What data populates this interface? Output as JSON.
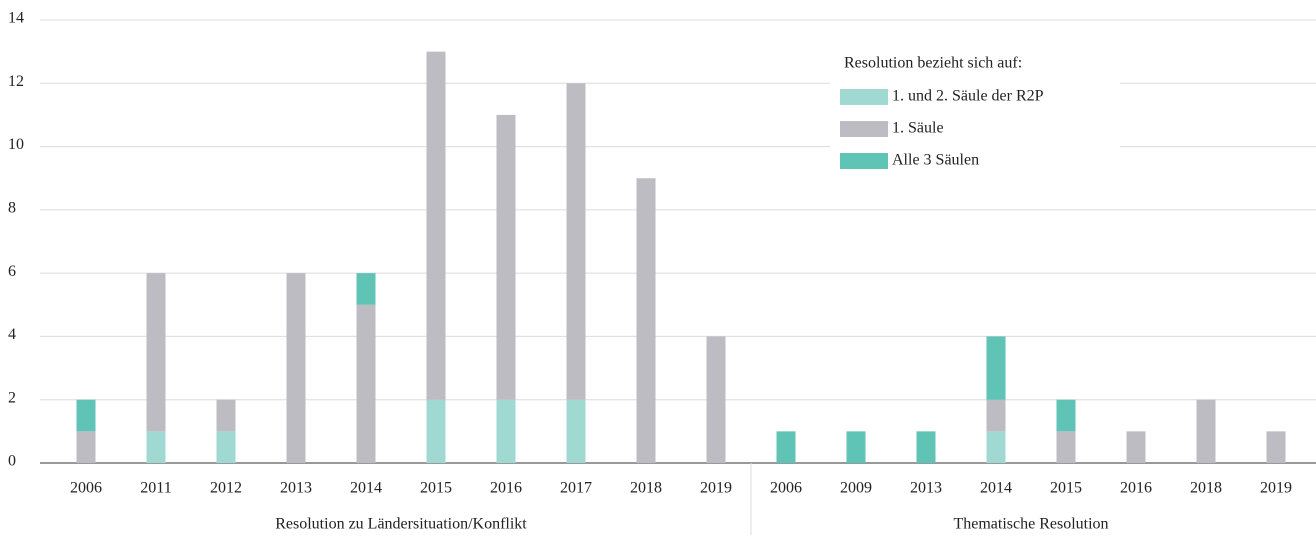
{
  "chart_data": {
    "type": "stacked-bar",
    "legend_title": "Resolution bezieht sich auf:",
    "legend": "top-right",
    "groups": [
      {
        "label": "Resolution zu Ländersituation/Konflikt",
        "categories": [
          "2006",
          "2011",
          "2012",
          "2013",
          "2014",
          "2015",
          "2016",
          "2017",
          "2018",
          "2019"
        ]
      },
      {
        "label": "Thematische Resolution",
        "categories": [
          "2006",
          "2009",
          "2013",
          "2014",
          "2015",
          "2016",
          "2018",
          "2019"
        ]
      }
    ],
    "series": [
      {
        "name": "1. und 2. Säule der R2P",
        "color": "#a0d9d1",
        "values": [
          0,
          1,
          1,
          0,
          0,
          2,
          2,
          2,
          0,
          0,
          0,
          0,
          0,
          1,
          0,
          0,
          0,
          0
        ]
      },
      {
        "name": "1. Säule",
        "color": "#bcbcc2",
        "values": [
          1,
          5,
          1,
          6,
          5,
          11,
          9,
          10,
          9,
          4,
          0,
          0,
          0,
          1,
          1,
          1,
          2,
          1
        ]
      },
      {
        "name": "Alle 3 Säulen",
        "color": "#5fc3b6",
        "values": [
          1,
          0,
          0,
          0,
          1,
          0,
          0,
          0,
          0,
          0,
          1,
          1,
          1,
          2,
          1,
          0,
          0,
          0
        ]
      }
    ],
    "ylim": [
      0,
      14
    ],
    "yticks": [
      0,
      2,
      4,
      6,
      8,
      10,
      12,
      14
    ],
    "grid": true
  }
}
